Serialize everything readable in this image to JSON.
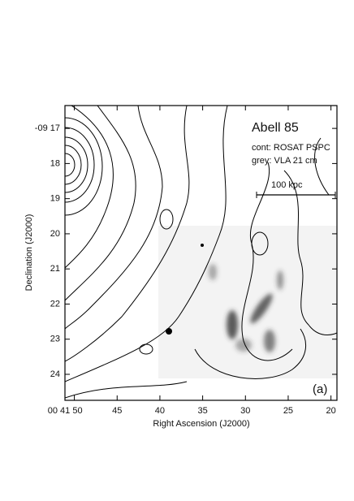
{
  "chart_data": {
    "type": "contour",
    "title": "Abell 85",
    "annotations": [
      "cont: ROSAT PSPC",
      "grey: VLA 21 cm",
      "100 kpc",
      "(a)"
    ],
    "x_label": "Right Ascension (J2000)",
    "y_label": "Declination (J2000)",
    "xlim": [
      51.1,
      19.3
    ],
    "xticks": [
      {
        "value": 50,
        "label": "00 41 50"
      },
      45,
      40,
      35,
      30,
      25,
      20
    ],
    "ylim": [
      24.74,
      16.35
    ],
    "yticks": [
      {
        "value": 17,
        "label": "-09 17"
      },
      18,
      19,
      20,
      21,
      22,
      23,
      24
    ]
  }
}
